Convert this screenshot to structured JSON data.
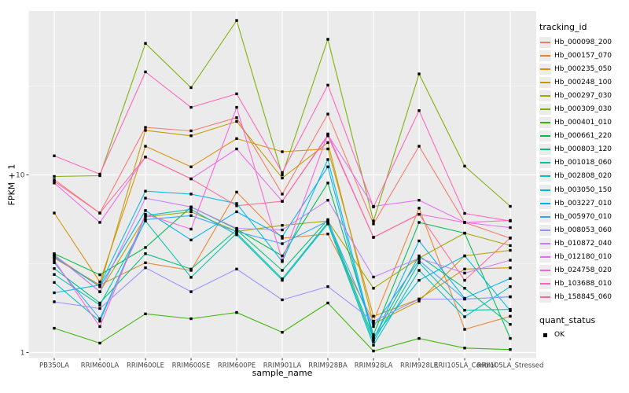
{
  "chart_data": {
    "type": "line",
    "x_label": "sample_name",
    "y_label": "FPKM + 1",
    "y_scale": "log10",
    "ylim": [
      0.94,
      84
    ],
    "grid": true,
    "panel_bg": "#EBEBEB",
    "grid_color": "#FFFFFF",
    "point_color": "#000000",
    "y_ticks": [
      {
        "value": 1,
        "label": "1"
      },
      {
        "value": 10,
        "label": "10"
      }
    ],
    "y_minor_ticks": [
      3.162,
      31.623
    ],
    "categories": [
      "PB350LA",
      "RRIM600LA",
      "RRIM600LE",
      "RRIM600SE",
      "RRIM600PE",
      "RRIM901LA",
      "RRIM928BA",
      "RRIM928LA",
      "RRIM928LE",
      "RRII105LA_Control",
      "RRII105LA_Stressed"
    ],
    "series": [
      {
        "name": "Hb_000098_200",
        "color": "#F8766D",
        "values": [
          9.2,
          6.1,
          18.5,
          17.7,
          21.0,
          7.8,
          22.0,
          5.3,
          14.5,
          5.4,
          4.4
        ]
      },
      {
        "name": "Hb_000157_070",
        "color": "#EA8331",
        "values": [
          3.4,
          2.4,
          3.2,
          2.9,
          8.0,
          4.4,
          4.65,
          1.5,
          6.5,
          1.35,
          1.6
        ]
      },
      {
        "name": "Hb_000235_050",
        "color": "#D89000",
        "values": [
          6.1,
          2.5,
          14.5,
          11.1,
          16.0,
          13.5,
          14.0,
          1.6,
          2.0,
          2.95,
          3.0
        ]
      },
      {
        "name": "Hb_000248_100",
        "color": "#C09B00",
        "values": [
          3.5,
          2.35,
          17.8,
          16.6,
          20.0,
          9.6,
          15.2,
          1.45,
          1.95,
          3.5,
          3.76
        ]
      },
      {
        "name": "Hb_000297_030",
        "color": "#A3A500",
        "values": [
          3.55,
          2.2,
          5.8,
          6.2,
          4.8,
          5.2,
          5.5,
          2.3,
          3.4,
          4.7,
          4.0
        ]
      },
      {
        "name": "Hb_000309_030",
        "color": "#7CAE00",
        "values": [
          9.8,
          9.9,
          55.0,
          31.0,
          74.0,
          10.0,
          58.0,
          5.5,
          37.0,
          11.2,
          6.65
        ]
      },
      {
        "name": "Hb_000401_010",
        "color": "#39B600",
        "values": [
          1.37,
          1.13,
          1.65,
          1.55,
          1.68,
          1.3,
          1.9,
          1.02,
          1.2,
          1.06,
          1.04
        ]
      },
      {
        "name": "Hb_000661_220",
        "color": "#00BB4E",
        "values": [
          3.6,
          2.74,
          3.9,
          6.6,
          4.95,
          3.5,
          9.0,
          1.26,
          5.4,
          4.7,
          1.2
        ]
      },
      {
        "name": "Hb_000803_120",
        "color": "#00BF7D",
        "values": [
          2.97,
          1.9,
          3.6,
          2.95,
          4.9,
          2.9,
          5.6,
          1.2,
          3.5,
          2.3,
          1.44
        ]
      },
      {
        "name": "Hb_001018_060",
        "color": "#00C1A3",
        "values": [
          2.75,
          1.85,
          5.5,
          2.65,
          4.7,
          2.6,
          5.4,
          1.15,
          3.2,
          1.73,
          1.75
        ]
      },
      {
        "name": "Hb_002808_020",
        "color": "#00BFC4",
        "values": [
          2.48,
          1.5,
          5.9,
          6.4,
          4.6,
          2.55,
          5.3,
          1.1,
          2.9,
          1.59,
          2.35
        ]
      },
      {
        "name": "Hb_003050_150",
        "color": "#00BAE0",
        "values": [
          2.17,
          2.4,
          8.1,
          7.8,
          6.9,
          3.25,
          12.2,
          1.22,
          2.55,
          3.5,
          1.72
        ]
      },
      {
        "name": "Hb_003227_010",
        "color": "#00B0F6",
        "values": [
          3.45,
          2.35,
          6.3,
          4.3,
          6.2,
          4.5,
          11.1,
          1.18,
          4.25,
          2.02,
          2.61
        ]
      },
      {
        "name": "Hb_005970_010",
        "color": "#35A2FF",
        "values": [
          3.2,
          1.55,
          5.6,
          5.9,
          4.8,
          4.1,
          5.5,
          1.4,
          3.3,
          2.0,
          2.06
        ]
      },
      {
        "name": "Hb_008053_060",
        "color": "#9590FF",
        "values": [
          1.93,
          1.77,
          3.0,
          2.2,
          2.95,
          1.98,
          2.35,
          1.5,
          2.0,
          2.0,
          2.06
        ]
      },
      {
        "name": "Hb_010872_040",
        "color": "#C77CFF",
        "values": [
          3.55,
          2.2,
          7.4,
          6.6,
          5.0,
          4.9,
          7.2,
          2.66,
          3.4,
          2.8,
          3.31
        ]
      },
      {
        "name": "Hb_012180_010",
        "color": "#E76BF3",
        "values": [
          9.0,
          5.4,
          12.6,
          9.5,
          14.0,
          7.1,
          16.8,
          6.65,
          7.2,
          5.4,
          5.05
        ]
      },
      {
        "name": "Hb_024758_020",
        "color": "#FA62DB",
        "values": [
          3.3,
          1.4,
          6.0,
          4.95,
          24.0,
          3.3,
          17.0,
          4.45,
          6.0,
          5.4,
          5.54
        ]
      },
      {
        "name": "Hb_103688_010",
        "color": "#FF62BC",
        "values": [
          12.8,
          10.1,
          38.0,
          24.0,
          28.6,
          10.3,
          32.0,
          6.6,
          23.0,
          6.07,
          5.5
        ]
      },
      {
        "name": "Hb_158845_060",
        "color": "#FF6A98",
        "values": [
          9.4,
          6.1,
          12.6,
          9.5,
          6.7,
          7.1,
          16.6,
          4.45,
          6.0,
          2.55,
          4.42
        ]
      }
    ]
  },
  "legend": {
    "tracking": {
      "title": "tracking_id"
    },
    "quant": {
      "title": "quant_status",
      "items": [
        {
          "label": "OK",
          "symbol": "square",
          "color": "#000000"
        }
      ]
    }
  }
}
